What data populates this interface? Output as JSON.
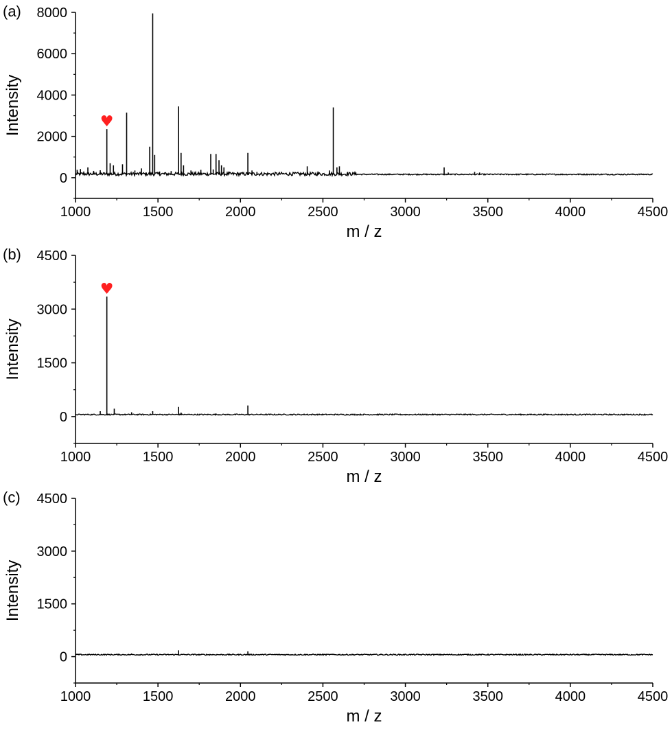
{
  "chart_data": [
    {
      "type": "line",
      "panel_label": "(a)",
      "xlabel": "m / z",
      "ylabel": "Intensity",
      "xlim": [
        1000,
        4500
      ],
      "ylim": [
        -1000,
        8000
      ],
      "xticks": [
        1000,
        1500,
        2000,
        2500,
        3000,
        3500,
        4000,
        4500
      ],
      "yticks": [
        0,
        2000,
        4000,
        6000,
        8000
      ],
      "baseline": 150,
      "marker_color": "#ff2020",
      "marker": {
        "x": 1190,
        "y": 2750,
        "symbol": "♥"
      },
      "peaks": [
        {
          "x": 1010,
          "y": 380
        },
        {
          "x": 1030,
          "y": 420
        },
        {
          "x": 1050,
          "y": 300
        },
        {
          "x": 1075,
          "y": 500
        },
        {
          "x": 1110,
          "y": 330
        },
        {
          "x": 1150,
          "y": 360
        },
        {
          "x": 1190,
          "y": 2350
        },
        {
          "x": 1210,
          "y": 700
        },
        {
          "x": 1230,
          "y": 600
        },
        {
          "x": 1285,
          "y": 650
        },
        {
          "x": 1310,
          "y": 3150
        },
        {
          "x": 1360,
          "y": 350
        },
        {
          "x": 1400,
          "y": 450
        },
        {
          "x": 1450,
          "y": 1500
        },
        {
          "x": 1468,
          "y": 7950
        },
        {
          "x": 1480,
          "y": 1100
        },
        {
          "x": 1510,
          "y": 300
        },
        {
          "x": 1540,
          "y": 250
        },
        {
          "x": 1580,
          "y": 320
        },
        {
          "x": 1625,
          "y": 3450
        },
        {
          "x": 1640,
          "y": 1200
        },
        {
          "x": 1655,
          "y": 600
        },
        {
          "x": 1700,
          "y": 350
        },
        {
          "x": 1760,
          "y": 380
        },
        {
          "x": 1820,
          "y": 1150
        },
        {
          "x": 1835,
          "y": 400
        },
        {
          "x": 1852,
          "y": 1150
        },
        {
          "x": 1870,
          "y": 850
        },
        {
          "x": 1885,
          "y": 600
        },
        {
          "x": 1900,
          "y": 500
        },
        {
          "x": 1930,
          "y": 300
        },
        {
          "x": 2045,
          "y": 1200
        },
        {
          "x": 2070,
          "y": 350
        },
        {
          "x": 2100,
          "y": 280
        },
        {
          "x": 2300,
          "y": 250
        },
        {
          "x": 2405,
          "y": 550
        },
        {
          "x": 2470,
          "y": 300
        },
        {
          "x": 2540,
          "y": 350
        },
        {
          "x": 2563,
          "y": 3400
        },
        {
          "x": 2585,
          "y": 500
        },
        {
          "x": 2600,
          "y": 550
        },
        {
          "x": 2650,
          "y": 280
        },
        {
          "x": 2700,
          "y": 250
        },
        {
          "x": 3235,
          "y": 500
        },
        {
          "x": 3260,
          "y": 250
        },
        {
          "x": 3420,
          "y": 280
        },
        {
          "x": 3450,
          "y": 250
        },
        {
          "x": 4050,
          "y": 200
        }
      ]
    },
    {
      "type": "line",
      "panel_label": "(b)",
      "xlabel": "m / z",
      "ylabel": "Intensity",
      "xlim": [
        1000,
        4500
      ],
      "ylim": [
        -750,
        4500
      ],
      "xticks": [
        1000,
        1500,
        2000,
        2500,
        3000,
        3500,
        4000,
        4500
      ],
      "yticks": [
        0,
        1500,
        3000,
        4500
      ],
      "baseline": 50,
      "marker_color": "#ff2020",
      "marker": {
        "x": 1190,
        "y": 3580,
        "symbol": "♥"
      },
      "peaks": [
        {
          "x": 1150,
          "y": 150
        },
        {
          "x": 1190,
          "y": 3350
        },
        {
          "x": 1235,
          "y": 220
        },
        {
          "x": 1340,
          "y": 120
        },
        {
          "x": 1468,
          "y": 150
        },
        {
          "x": 1625,
          "y": 270
        },
        {
          "x": 1640,
          "y": 110
        },
        {
          "x": 1850,
          "y": 80
        },
        {
          "x": 2045,
          "y": 310
        },
        {
          "x": 2405,
          "y": 80
        }
      ]
    },
    {
      "type": "line",
      "panel_label": "(c)",
      "xlabel": "m / z",
      "ylabel": "Intensity",
      "xlim": [
        1000,
        4500
      ],
      "ylim": [
        -750,
        4500
      ],
      "xticks": [
        1000,
        1500,
        2000,
        2500,
        3000,
        3500,
        4000,
        4500
      ],
      "yticks": [
        0,
        1500,
        3000,
        4500
      ],
      "baseline": 50,
      "peaks": [
        {
          "x": 1340,
          "y": 90
        },
        {
          "x": 1625,
          "y": 180
        },
        {
          "x": 2045,
          "y": 150
        }
      ]
    }
  ]
}
